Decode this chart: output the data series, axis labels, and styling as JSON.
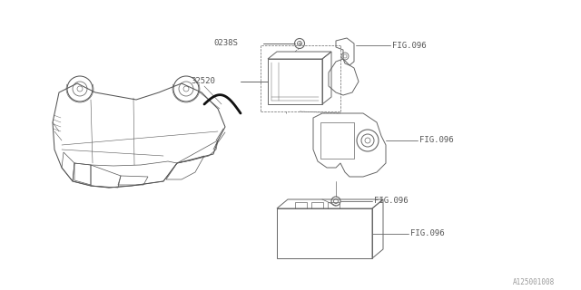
{
  "bg_color": "#ffffff",
  "line_color": "#666666",
  "dark_line": "#333333",
  "label_color": "#555555",
  "fig_color": "#555555",
  "watermark": "A125001008",
  "watermark_color": "#999999",
  "part_0238S": "0238S",
  "part_32520": "32520",
  "fig096": "FIG.096",
  "figsize": [
    6.4,
    3.2
  ],
  "dpi": 100
}
